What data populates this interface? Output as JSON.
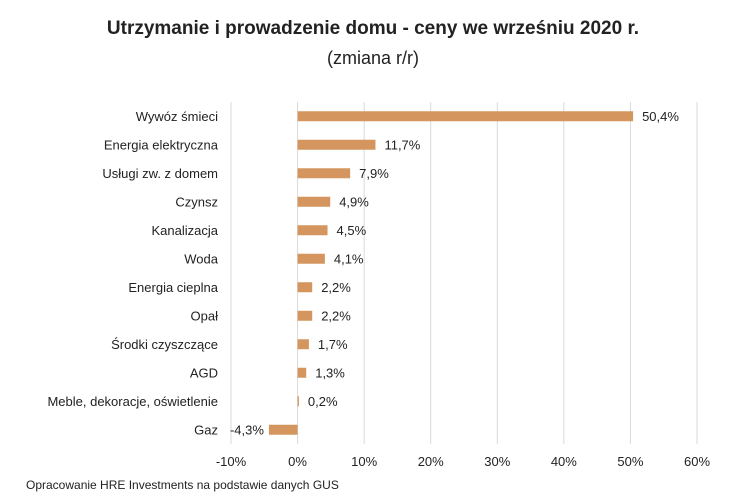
{
  "chart_data": {
    "type": "bar",
    "orientation": "horizontal",
    "title": "Utrzymanie i prowadzenie domu - ceny we wrześniu 2020 r.",
    "subtitle": "(zmiana r/r)",
    "categories": [
      "Wywóz śmieci",
      "Energia elektryczna",
      "Usługi zw. z domem",
      "Czynsz",
      "Kanalizacja",
      "Woda",
      "Energia cieplna",
      "Opał",
      "Środki czyszczące",
      "AGD",
      "Meble, dekoracje, oświetlenie",
      "Gaz"
    ],
    "values": [
      50.4,
      11.7,
      7.9,
      4.9,
      4.5,
      4.1,
      2.2,
      2.2,
      1.7,
      1.3,
      0.2,
      -4.3
    ],
    "value_labels": [
      "50,4%",
      "11,7%",
      "7,9%",
      "4,9%",
      "4,5%",
      "4,1%",
      "2,2%",
      "2,2%",
      "1,7%",
      "1,3%",
      "0,2%",
      "-4,3%"
    ],
    "xlim": [
      -10,
      60
    ],
    "xticks": [
      -10,
      0,
      10,
      20,
      30,
      40,
      50,
      60
    ],
    "xtick_labels": [
      "-10%",
      "0%",
      "10%",
      "20%",
      "30%",
      "40%",
      "50%",
      "60%"
    ],
    "grid": true,
    "legend": "none",
    "bar_color": "#d4955f",
    "grid_color": "#d9d9d9"
  },
  "source_note": "Opracowanie HRE Investments na podstawie danych GUS"
}
